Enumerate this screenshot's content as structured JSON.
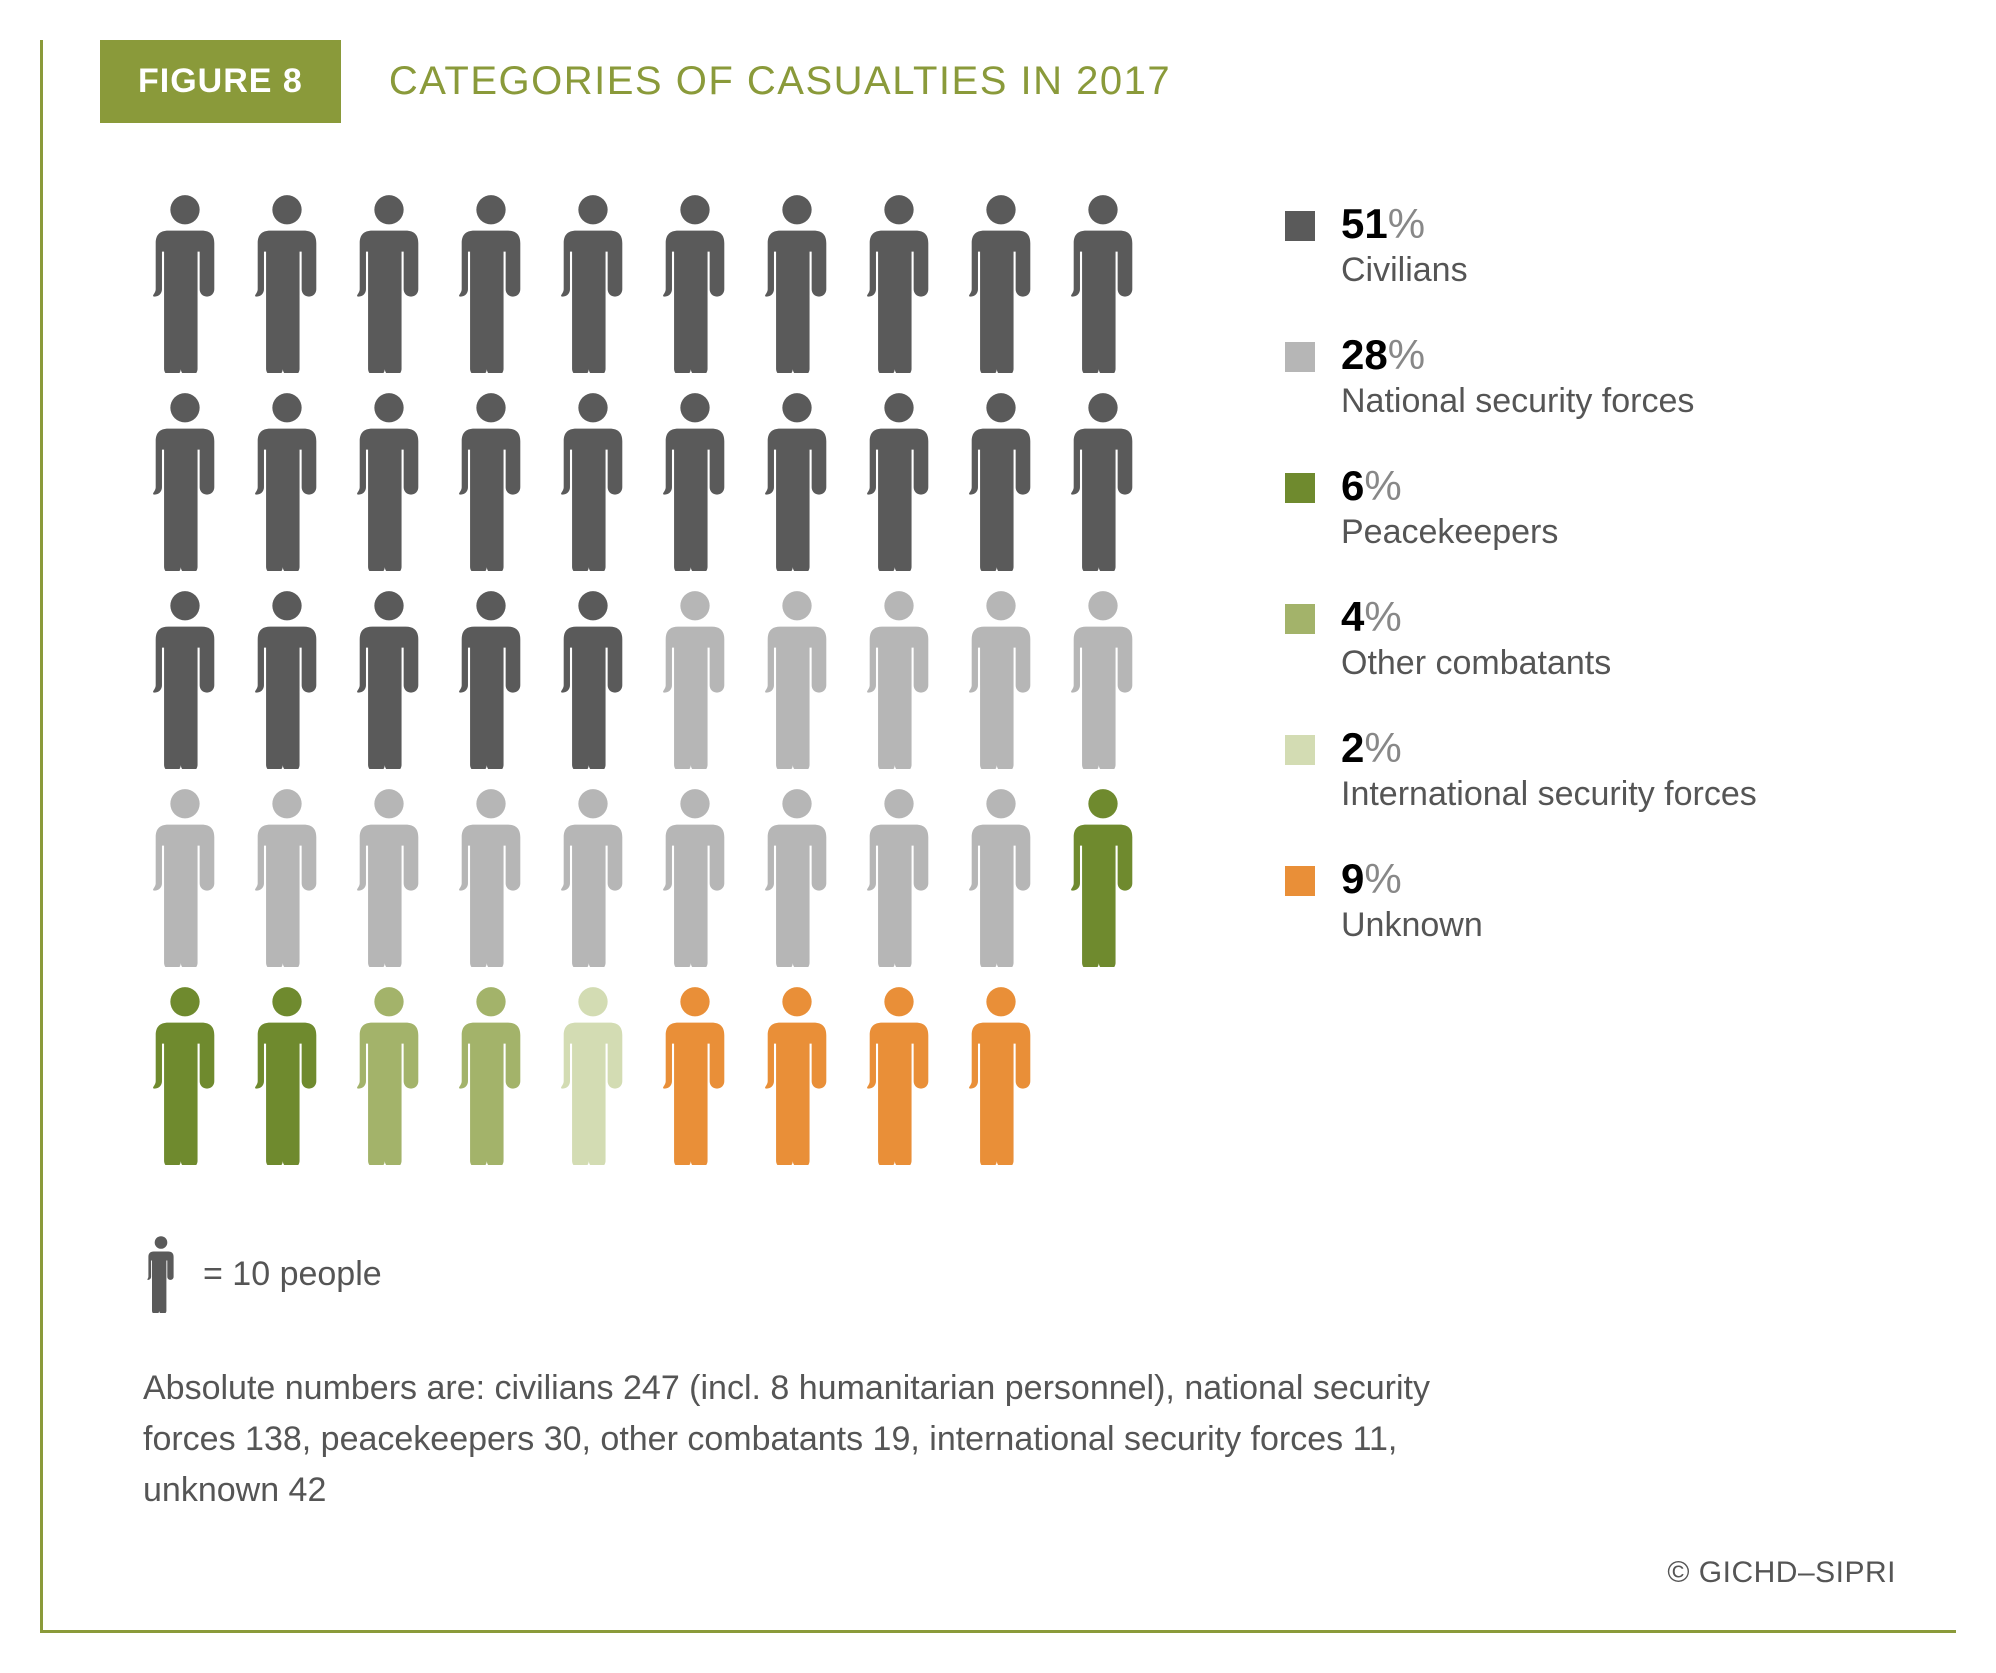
{
  "figure": {
    "badge_label": "FIGURE 8",
    "title": "CATEGORIES OF CASUALTIES IN 2017",
    "border_color": "#8a9a3a",
    "badge_bg": "#8a9a3a",
    "title_color": "#8a9a3a"
  },
  "isotype": {
    "columns": 10,
    "icon_value": 10,
    "key_label": "= 10 people",
    "key_icon_color": "#5a5a5a",
    "categories": [
      {
        "id": "civilians",
        "label": "Civilians",
        "percent": 51,
        "absolute": 247,
        "color": "#5a5a5a",
        "icons": 25
      },
      {
        "id": "national_security",
        "label": "National security forces",
        "percent": 28,
        "absolute": 138,
        "color": "#b6b6b6",
        "icons": 14
      },
      {
        "id": "peacekeepers",
        "label": "Peacekeepers",
        "percent": 6,
        "absolute": 30,
        "color": "#6f8a2e",
        "icons": 3
      },
      {
        "id": "other_combatants",
        "label": "Other combatants",
        "percent": 4,
        "absolute": 19,
        "color": "#a3b36a",
        "icons": 2
      },
      {
        "id": "international_security",
        "label": "International security forces",
        "percent": 2,
        "absolute": 11,
        "color": "#d3dcb3",
        "icons": 1
      },
      {
        "id": "unknown",
        "label": "Unknown",
        "percent": 9,
        "absolute": 42,
        "color": "#e98f38",
        "icons": 4
      }
    ],
    "total_icons_rendered": 49,
    "rows_drawn": 5
  },
  "footnote": "Absolute numbers are: civilians 247 (incl. 8 humanitarian personnel), national security forces 138, peacekeepers 30, other combatants 19, international security forces 11, unknown 42",
  "attribution": "© GICHD–SIPRI"
}
